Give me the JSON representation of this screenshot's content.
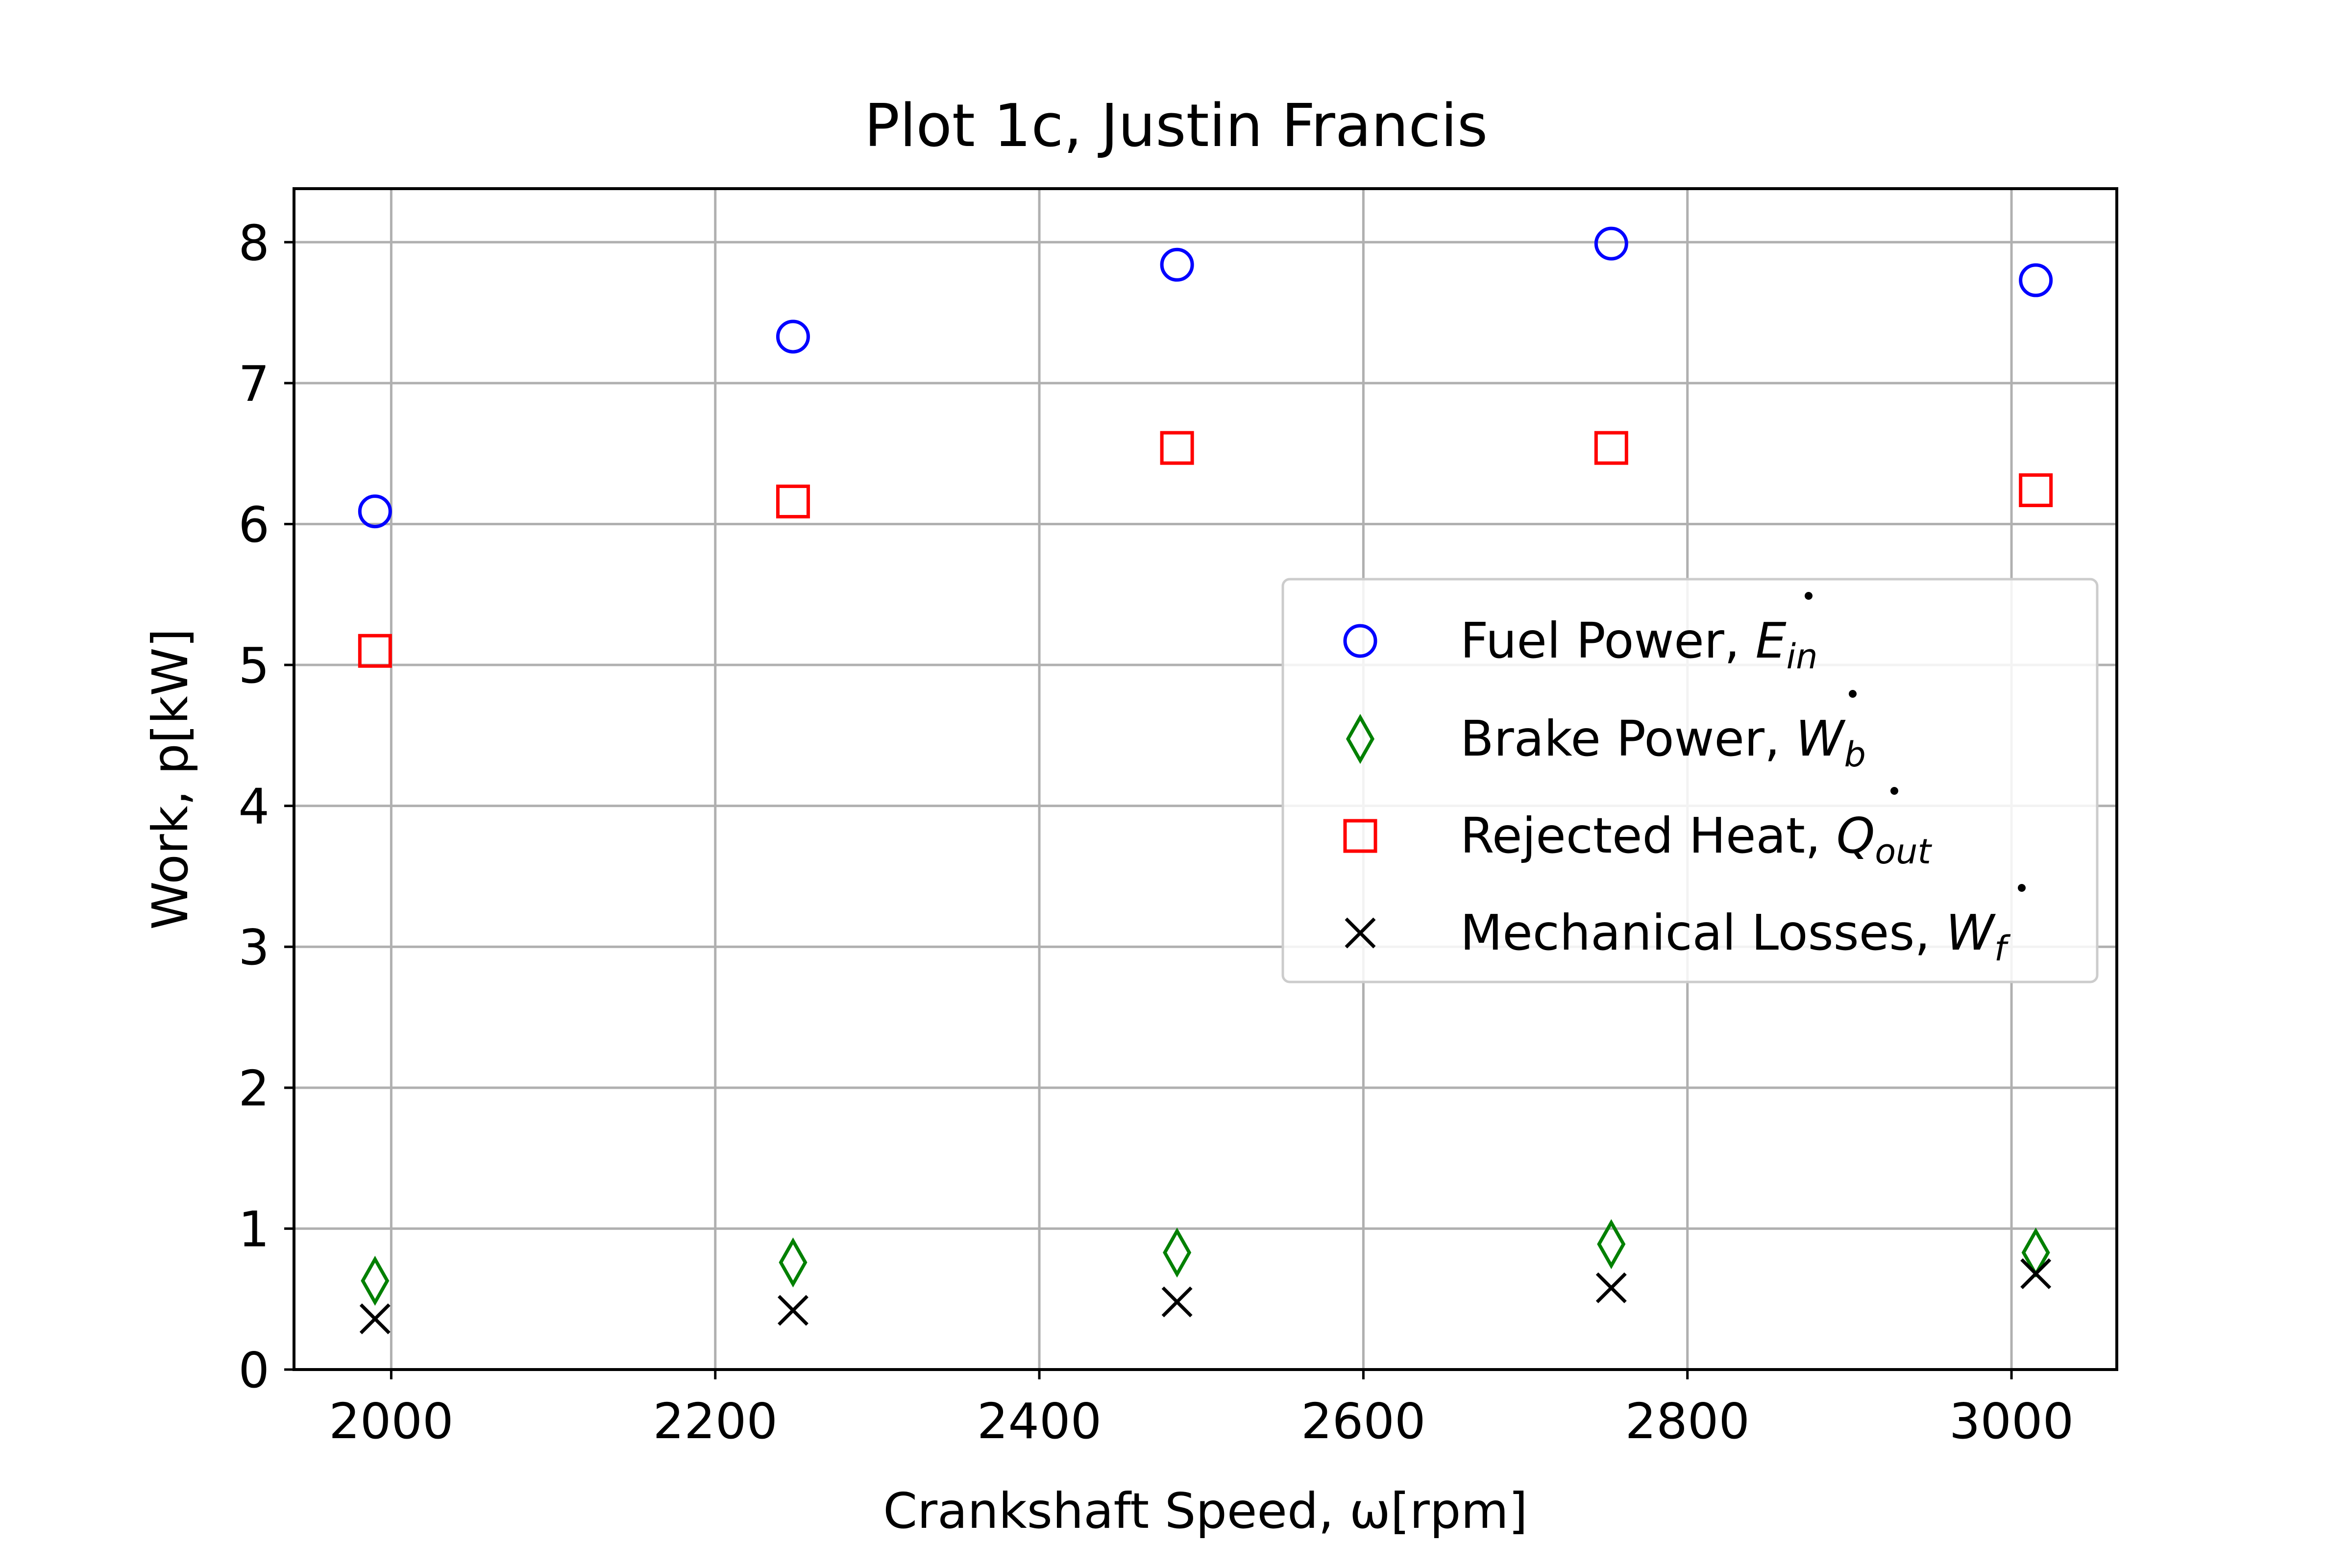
{
  "chart_data": {
    "type": "scatter",
    "title": "Plot 1c, Justin Francis",
    "xlabel": "Crankshaft Speed, ω[rpm]",
    "ylabel": "Work, p[kW]",
    "xlim": [
      1940,
      3065
    ],
    "ylim": [
      0,
      8.38
    ],
    "xticks": [
      2000,
      2200,
      2400,
      2600,
      2800,
      3000
    ],
    "yticks": [
      0,
      1,
      2,
      3,
      4,
      5,
      6,
      7,
      8
    ],
    "grid": true,
    "legend_position": "center-right",
    "x": [
      1990,
      2248,
      2485,
      2753,
      3015
    ],
    "series": [
      {
        "key": "fuel",
        "name": "Fuel Power, Ė_in",
        "marker": "circle",
        "color": "#0000ff",
        "values": [
          6.09,
          7.33,
          7.84,
          7.99,
          7.73
        ]
      },
      {
        "key": "brake",
        "name": "Brake Power, Ẇ_b",
        "marker": "diamond",
        "color": "#008000",
        "values": [
          0.63,
          0.76,
          0.83,
          0.89,
          0.83
        ]
      },
      {
        "key": "heat",
        "name": "Rejected Heat, Q̇_out",
        "marker": "square",
        "color": "#ff0000",
        "values": [
          5.1,
          6.16,
          6.54,
          6.54,
          6.24
        ]
      },
      {
        "key": "mech",
        "name": "Mechanical Losses, Ẇ_f",
        "marker": "x",
        "color": "#000000",
        "values": [
          0.36,
          0.42,
          0.48,
          0.58,
          0.68
        ]
      }
    ],
    "legend": [
      {
        "base": "Fuel Power, ",
        "sym": "E",
        "sub": "in"
      },
      {
        "base": "Brake Power, ",
        "sym": "W",
        "sub": "b"
      },
      {
        "base": "Rejected Heat, ",
        "sym": "Q",
        "sub": "out"
      },
      {
        "base": "Mechanical Losses, ",
        "sym": "W",
        "sub": "f"
      }
    ]
  }
}
